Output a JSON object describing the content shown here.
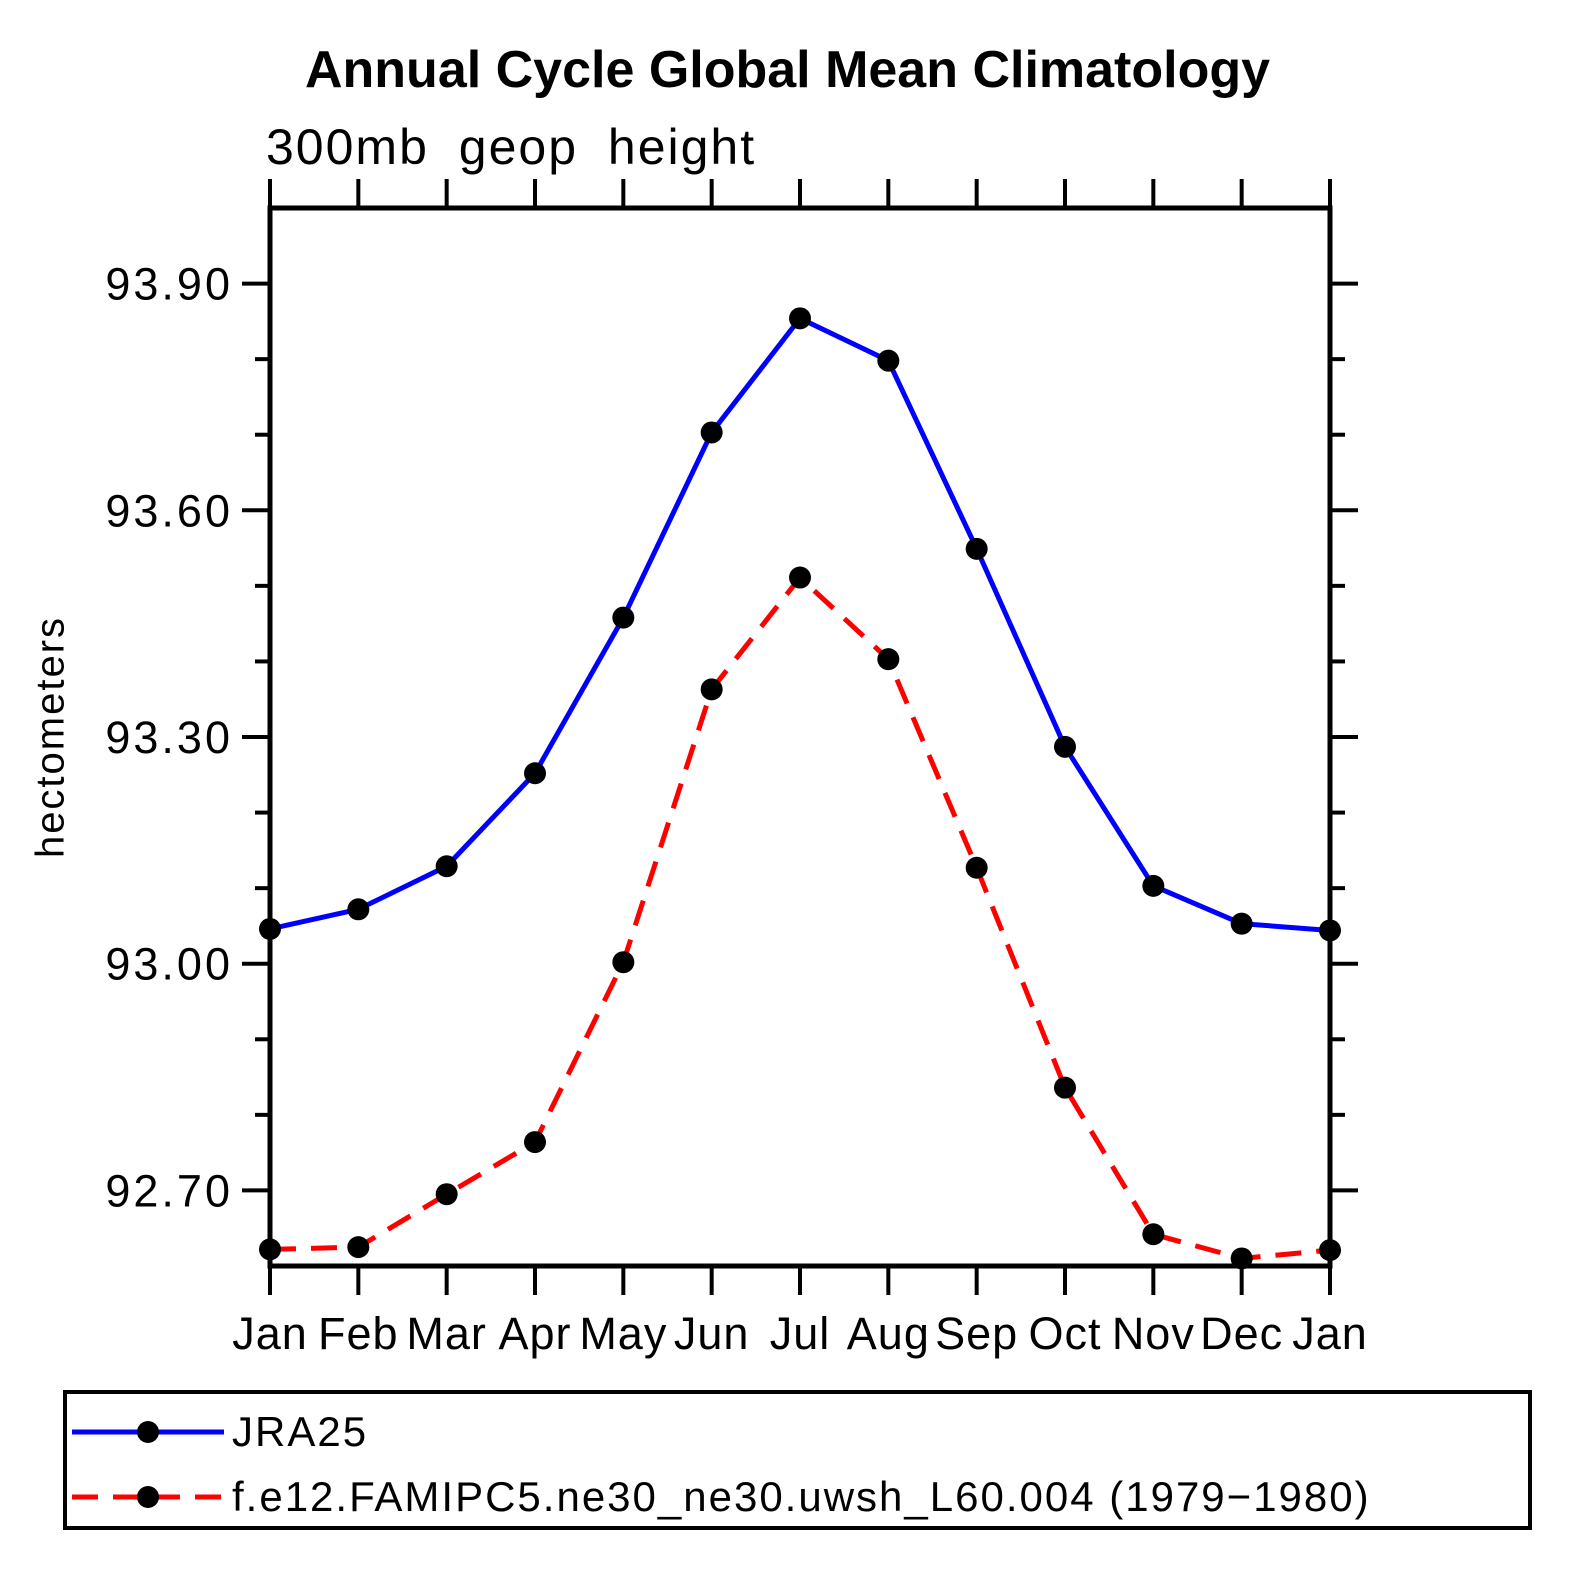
{
  "chart": {
    "title": "Annual Cycle Global Mean Climatology",
    "subtitle": "300mb geop height",
    "ylabel": "hectometers"
  },
  "chart_data": {
    "type": "line",
    "title": "Annual Cycle Global Mean Climatology",
    "subtitle": "300mb geop height",
    "xlabel": "",
    "ylabel": "hectometers",
    "categories": [
      "Jan",
      "Feb",
      "Mar",
      "Apr",
      "May",
      "Jun",
      "Jul",
      "Aug",
      "Sep",
      "Oct",
      "Nov",
      "Dec",
      "Jan"
    ],
    "y_tick_labels": [
      "93.90",
      "93.60",
      "93.30",
      "93.00",
      "92.70"
    ],
    "y_tick_values": [
      93.9,
      93.6,
      93.3,
      93.0,
      92.7
    ],
    "minor_tick_step": 0.1,
    "ylim": [
      92.6,
      94.0
    ],
    "grid": false,
    "legend_position": "bottom",
    "colors": {
      "axis": "#000000",
      "marker": "#000000",
      "jra25": "#0000ff",
      "model": "#ff0000"
    },
    "series": [
      {
        "name": "JRA25",
        "color": "#0000ff",
        "style": "solid",
        "marker": "circle",
        "values": [
          93.046,
          93.072,
          93.129,
          93.252,
          93.458,
          93.703,
          93.854,
          93.798,
          93.549,
          93.287,
          93.103,
          93.053,
          93.044
        ]
      },
      {
        "name": "f.e12.FAMIPC5.ne30_ne30.uwsh_L60.004 (1979−1980)",
        "color": "#ff0000",
        "style": "dashed",
        "marker": "circle",
        "values": [
          92.622,
          92.625,
          92.695,
          92.764,
          93.002,
          93.363,
          93.511,
          93.403,
          93.127,
          92.836,
          92.642,
          92.61,
          92.621
        ]
      }
    ]
  }
}
